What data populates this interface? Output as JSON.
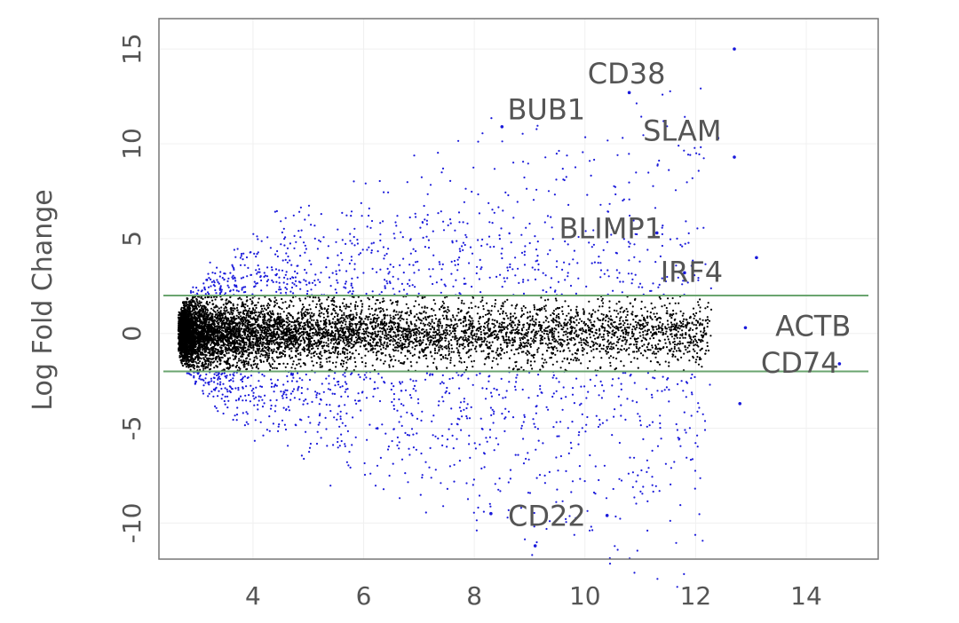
{
  "chart_data": {
    "type": "scatter",
    "title": "",
    "xlabel": "",
    "ylabel": "Log Fold Change",
    "xlim": [
      2.3,
      15.3
    ],
    "ylim": [
      -11.9,
      16.6
    ],
    "grid": true,
    "x_ticks": [
      4,
      6,
      8,
      10,
      12,
      14
    ],
    "y_ticks": [
      -10,
      -5,
      0,
      5,
      10,
      15
    ],
    "threshold_lines": [
      2,
      -2
    ],
    "threshold_color": "#6aa56f",
    "significant_color": "#1a1adb",
    "nonsignificant_color": "#000000",
    "annotations": [
      {
        "label": "CD38",
        "x": 10.8,
        "y": 12.8
      },
      {
        "label": "BUB1",
        "x": 8.5,
        "y": 11.0
      },
      {
        "label": "SLAM",
        "x": 12.4,
        "y": 10.3
      },
      {
        "label": "BLIMP1",
        "x": 11.3,
        "y": 5.3
      },
      {
        "label": "IRF4",
        "x": 11.8,
        "y": 3.2
      },
      {
        "label": "ACTB",
        "x": 15.0,
        "y": 0.3
      },
      {
        "label": "CD74",
        "x": 14.7,
        "y": -1.6
      },
      {
        "label": "CD22",
        "x": 8.3,
        "y": -9.5
      }
    ],
    "highlighted_points": [
      {
        "x": 12.7,
        "y": 15.0
      },
      {
        "x": 10.8,
        "y": 12.7
      },
      {
        "x": 8.5,
        "y": 10.9
      },
      {
        "x": 12.4,
        "y": 10.3
      },
      {
        "x": 12.7,
        "y": 9.3
      },
      {
        "x": 11.3,
        "y": 5.3
      },
      {
        "x": 11.8,
        "y": 3.2
      },
      {
        "x": 13.1,
        "y": 4.0
      },
      {
        "x": 12.9,
        "y": 0.3
      },
      {
        "x": 14.6,
        "y": -1.6
      },
      {
        "x": 12.8,
        "y": -3.7
      },
      {
        "x": 9.1,
        "y": -11.2
      },
      {
        "x": 8.3,
        "y": -9.5
      },
      {
        "x": 10.4,
        "y": -9.6
      }
    ]
  }
}
